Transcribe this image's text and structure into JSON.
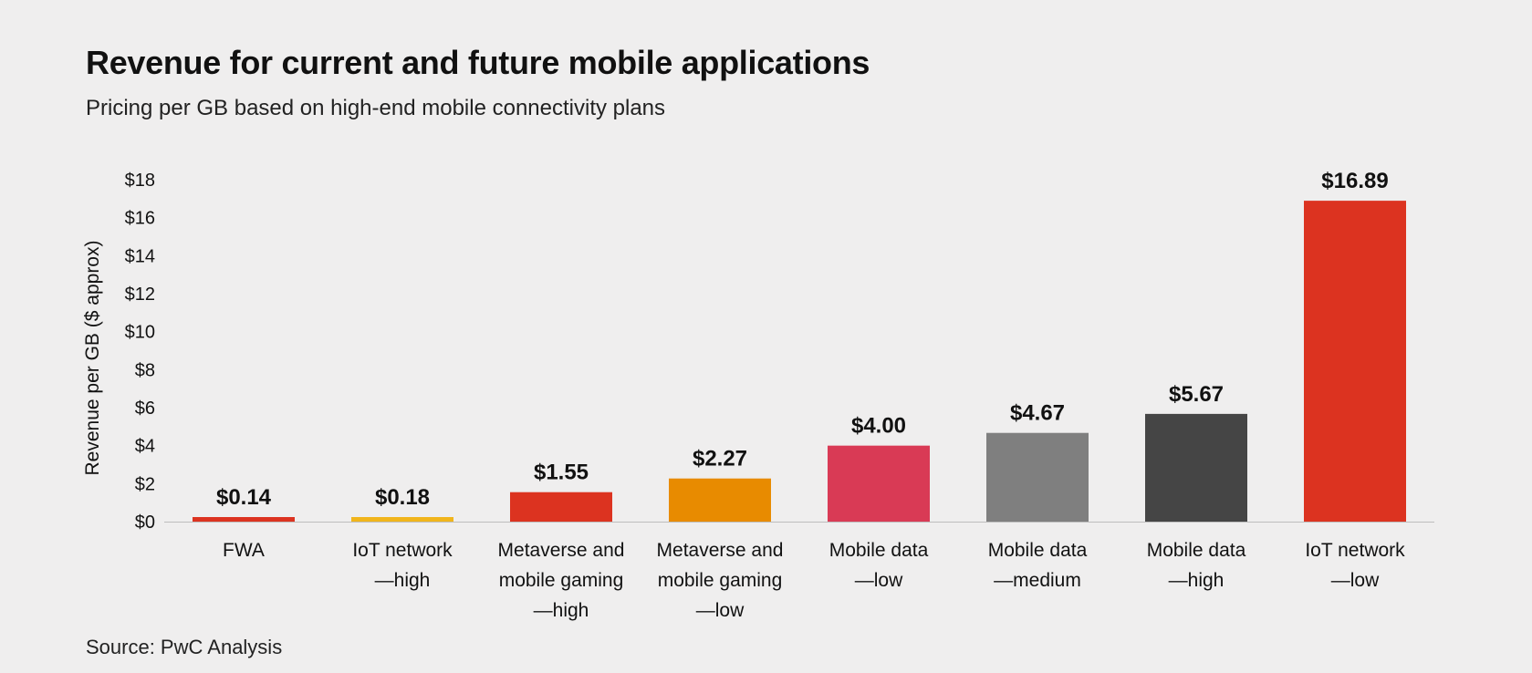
{
  "title": "Revenue for current and future mobile applications",
  "subtitle": "Pricing per GB based on high-end mobile connectivity plans",
  "source": "Source: PwC Analysis",
  "chart_data": {
    "type": "bar",
    "title": "Revenue for current and future mobile applications",
    "subtitle": "Pricing per GB based on high-end mobile connectivity plans",
    "xlabel": "",
    "ylabel": "Revenue per GB ($ approx)",
    "ylim": [
      0,
      18
    ],
    "yticks": [
      0,
      2,
      4,
      6,
      8,
      10,
      12,
      14,
      16,
      18
    ],
    "ytick_labels": [
      "$0",
      "$2",
      "$4",
      "$6",
      "$8",
      "$10",
      "$12",
      "$14",
      "$16",
      "$18"
    ],
    "grid": false,
    "legend": "none",
    "categories": [
      [
        "FWA"
      ],
      [
        "IoT network",
        "—high"
      ],
      [
        "Metaverse and",
        "mobile gaming",
        "—high"
      ],
      [
        "Metaverse and",
        "mobile gaming",
        "—low"
      ],
      [
        "Mobile data",
        "—low"
      ],
      [
        "Mobile data",
        "—medium"
      ],
      [
        "Mobile data",
        "—high"
      ],
      [
        "IoT network",
        "—low"
      ]
    ],
    "values": [
      0.14,
      0.18,
      1.55,
      2.27,
      4.0,
      4.67,
      5.67,
      16.89
    ],
    "value_labels": [
      "$0.14",
      "$0.18",
      "$1.55",
      "$2.27",
      "$4.00",
      "$4.67",
      "$5.67",
      "$16.89"
    ],
    "colors": [
      "#dc3320",
      "#f1b51c",
      "#dc3320",
      "#e88b00",
      "#d93a55",
      "#7f7f7f",
      "#454545",
      "#dc3320"
    ]
  }
}
